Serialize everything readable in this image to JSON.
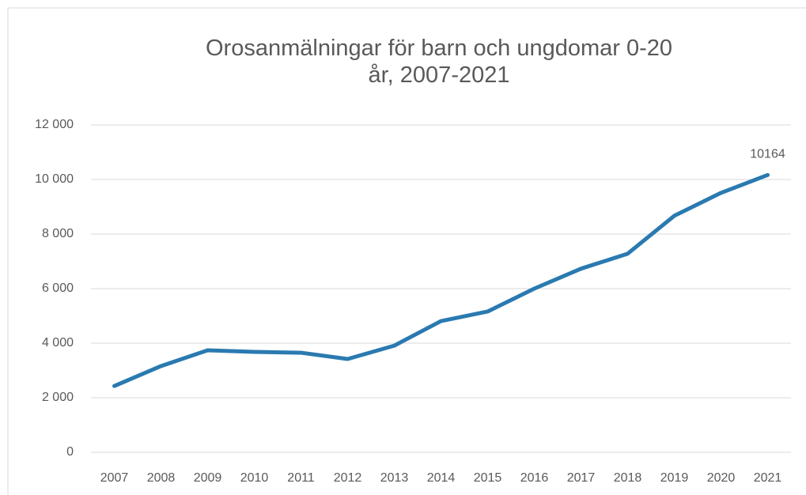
{
  "chart_data": {
    "type": "line",
    "title": "Orosanmälningar för barn och ungdomar 0-20 år, 2007-2021",
    "categories": [
      "2007",
      "2008",
      "2009",
      "2010",
      "2011",
      "2012",
      "2013",
      "2014",
      "2015",
      "2016",
      "2017",
      "2018",
      "2019",
      "2020",
      "2021"
    ],
    "series": [
      {
        "name": "Orosanmälningar",
        "color": "#2a7ab0",
        "values": [
          2430,
          3160,
          3740,
          3680,
          3650,
          3420,
          3910,
          4810,
          5160,
          6000,
          6730,
          7280,
          8670,
          9510,
          10164
        ]
      }
    ],
    "ylim": [
      0,
      12000
    ],
    "yticks": [
      0,
      {
        "value": 2000,
        "label": "2 000"
      },
      {
        "value": 4000,
        "label": "4 000"
      },
      {
        "value": 6000,
        "label": "6 000"
      },
      {
        "value": 8000,
        "label": "8 000"
      },
      {
        "value": 10000,
        "label": "10 000"
      },
      {
        "value": 12000,
        "label": "12 000"
      }
    ],
    "grid": true
  }
}
